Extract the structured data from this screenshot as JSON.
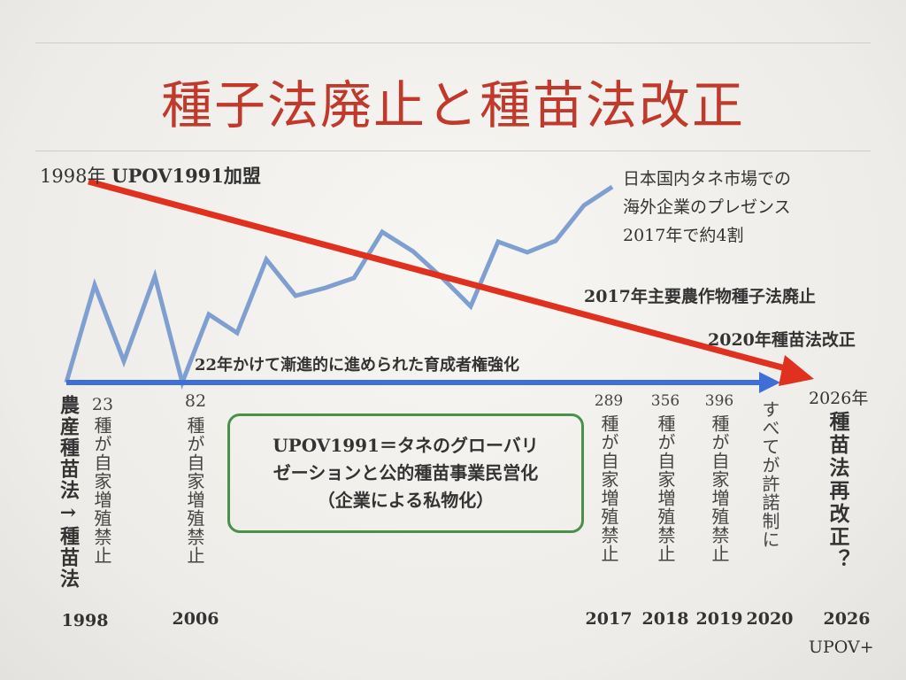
{
  "title": "種子法廃止と種苗法改正",
  "upov_join": {
    "year": "1998年",
    "label": "UPOV1991加盟"
  },
  "foreign_share": [
    "日本国内タネ市場での",
    "海外企業のプレゼンス",
    "2017年で約4割"
  ],
  "event_2017": "2017年主要農作物種子法廃止",
  "event_2020": "2020年種苗法改正",
  "timeline_label": "22年かけて漸進的に進められた育成者権強化",
  "law_change": "農産種苗法→種苗法",
  "box_text": [
    "UPOV1991＝タネのグローバリ",
    "ゼーションと公的種苗事業民営化",
    "（企業による私物化）"
  ],
  "milestones": [
    {
      "count": "23",
      "text": "種が自家増殖禁止",
      "year": "1998"
    },
    {
      "count": "82",
      "text": "種が自家増殖禁止",
      "year": "2006"
    },
    {
      "count": "289",
      "text": "種が自家増殖禁止",
      "year": "2017"
    },
    {
      "count": "356",
      "text": "種が自家増殖禁止",
      "year": "2018"
    },
    {
      "count": "396",
      "text": "種が自家増殖禁止",
      "year": "2019"
    },
    {
      "count": "",
      "text": "すべてが許諾制に",
      "year": "2020"
    }
  ],
  "future": {
    "year_label": "2026年",
    "text": "種苗法再改正？",
    "year": "2026",
    "note": "UPOV+"
  },
  "colors": {
    "title": "#c0392b",
    "red_arrow": "#e0301e",
    "blue_arrow": "#3f6fd6",
    "trend_line": "#7f9fd0",
    "box_border": "#4a8f4a"
  }
}
